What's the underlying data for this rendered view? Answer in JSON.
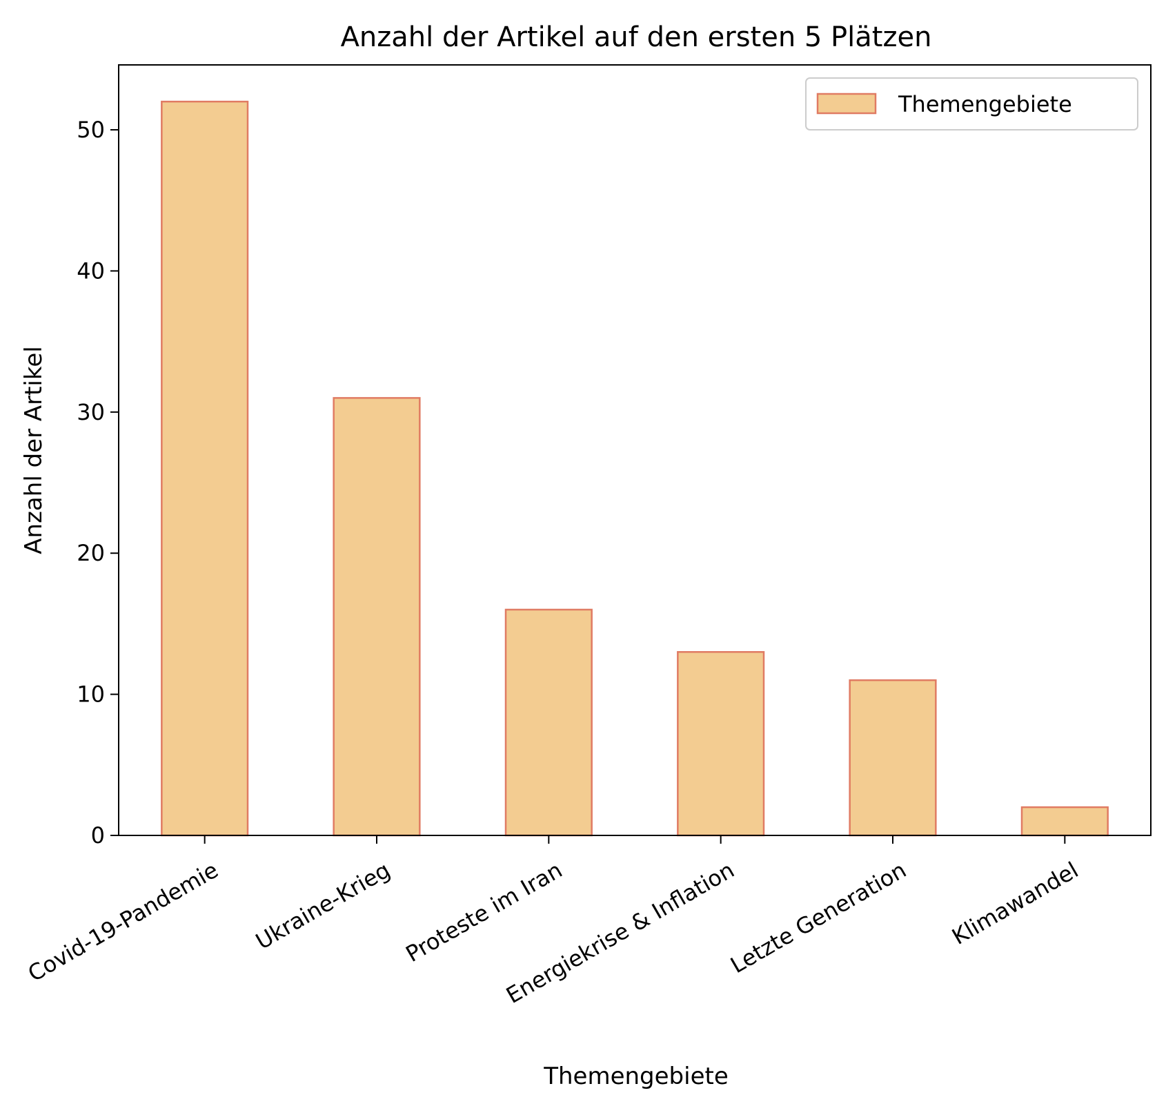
{
  "chart_data": {
    "type": "bar",
    "title": "Anzahl der Artikel auf den ersten 5 Plätzen",
    "xlabel": "Themengebiete",
    "ylabel": "Anzahl der Artikel",
    "categories": [
      "Covid-19-Pandemie",
      "Ukraine-Krieg",
      "Proteste im Iran",
      "Energiekrise & Inflation",
      "Letzte Generation",
      "Klimawandel"
    ],
    "series": [
      {
        "name": "Themengebiete",
        "values": [
          52,
          31,
          16,
          13,
          11,
          2
        ]
      }
    ],
    "ylim": [
      0,
      54.6
    ],
    "yticks": [
      0,
      10,
      20,
      30,
      40,
      50
    ],
    "grid": false,
    "legend_position": "top-right",
    "colors": {
      "bar_fill": "#f3cc91",
      "bar_edge": "#e07b63"
    }
  }
}
